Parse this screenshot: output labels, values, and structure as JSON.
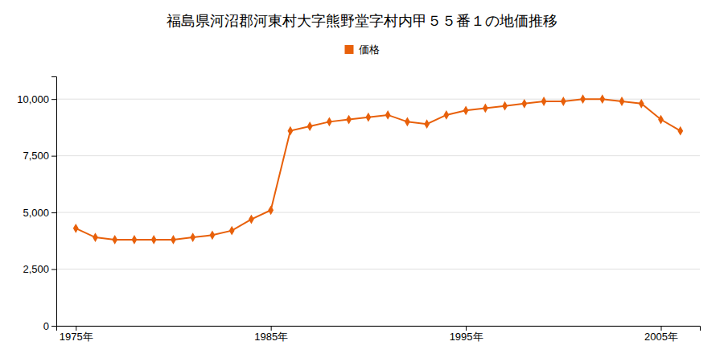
{
  "chart_data": {
    "type": "line",
    "title": "福島県河沼郡河東村大字熊野堂字村内甲５５番１の地価推移",
    "x": [
      1975,
      1976,
      1977,
      1978,
      1979,
      1980,
      1981,
      1982,
      1983,
      1984,
      1985,
      1986,
      1987,
      1988,
      1989,
      1990,
      1991,
      1992,
      1993,
      1994,
      1995,
      1996,
      1997,
      1998,
      1999,
      2000,
      2001,
      2002,
      2003,
      2004,
      2005,
      2006
    ],
    "series": [
      {
        "name": "価格",
        "color": "#E8600A",
        "marker": "diamond",
        "values": [
          4300,
          3900,
          3800,
          3800,
          3800,
          3800,
          3900,
          4000,
          4200,
          4700,
          5100,
          8600,
          8800,
          9000,
          9100,
          9200,
          9300,
          9000,
          8900,
          9300,
          9500,
          9600,
          9700,
          9800,
          9900,
          9900,
          10000,
          10000,
          9900,
          9800,
          9100,
          8600
        ]
      }
    ],
    "xlim": [
      1974,
      2007
    ],
    "xticks": [
      {
        "value": 1975,
        "label": "1975年"
      },
      {
        "value": 1985,
        "label": "1985年"
      },
      {
        "value": 1995,
        "label": "1995年"
      },
      {
        "value": 2005,
        "label": "2005年"
      }
    ],
    "ylim": [
      0,
      11000
    ],
    "yticks": [
      0,
      {
        "value": 2500,
        "label": "2,500"
      },
      {
        "value": 5000,
        "label": "5,000"
      },
      {
        "value": 7500,
        "label": "7,500"
      },
      {
        "value": 10000,
        "label": "10,000"
      }
    ],
    "grid": true,
    "legend": "top"
  }
}
